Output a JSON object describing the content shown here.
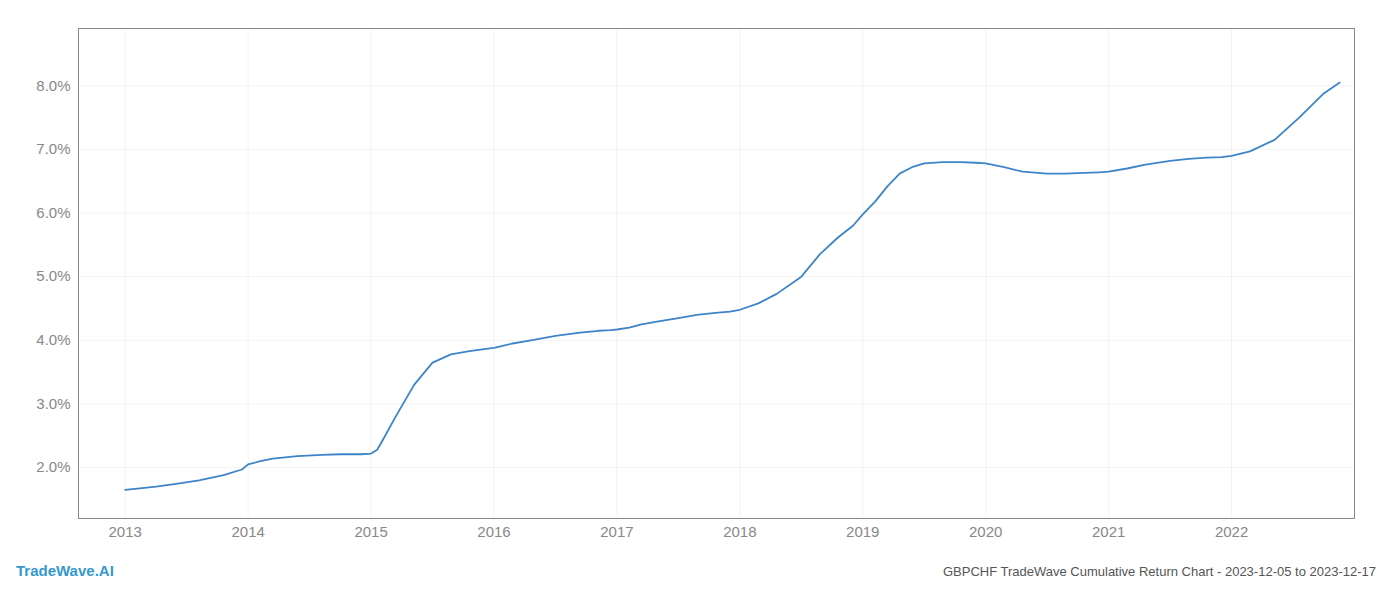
{
  "chart_data": {
    "type": "line",
    "title": "GBPCHF TradeWave Cumulative Return Chart - 2023-12-05 to 2023-12-17",
    "annotations": [
      "TradeWave.AI"
    ],
    "color": "#3d85c8",
    "grid": true,
    "x": [
      2013.0,
      2013.1,
      2013.25,
      2013.4,
      2013.6,
      2013.8,
      2013.95,
      2014.0,
      2014.1,
      2014.2,
      2014.4,
      2014.6,
      2014.75,
      2014.85,
      2014.92,
      2015.0,
      2015.05,
      2015.1,
      2015.2,
      2015.35,
      2015.5,
      2015.65,
      2015.8,
      2015.92,
      2016.0,
      2016.15,
      2016.3,
      2016.5,
      2016.7,
      2016.85,
      2016.95,
      2017.0,
      2017.1,
      2017.2,
      2017.35,
      2017.5,
      2017.65,
      2017.8,
      2017.92,
      2018.0,
      2018.15,
      2018.3,
      2018.5,
      2018.65,
      2018.8,
      2018.92,
      2019.0,
      2019.1,
      2019.2,
      2019.3,
      2019.4,
      2019.5,
      2019.65,
      2019.8,
      2019.92,
      2020.0,
      2020.15,
      2020.3,
      2020.5,
      2020.65,
      2020.8,
      2020.92,
      2021.0,
      2021.15,
      2021.3,
      2021.5,
      2021.65,
      2021.8,
      2021.92,
      2022.0,
      2022.15,
      2022.35,
      2022.55,
      2022.75,
      2022.88
    ],
    "values": [
      1.65,
      1.67,
      1.7,
      1.74,
      1.8,
      1.88,
      1.97,
      2.05,
      2.1,
      2.14,
      2.18,
      2.2,
      2.21,
      2.21,
      2.21,
      2.22,
      2.28,
      2.45,
      2.8,
      3.3,
      3.65,
      3.78,
      3.83,
      3.86,
      3.88,
      3.95,
      4.0,
      4.07,
      4.12,
      4.15,
      4.16,
      4.17,
      4.2,
      4.25,
      4.3,
      4.35,
      4.4,
      4.43,
      4.45,
      4.48,
      4.58,
      4.73,
      5.0,
      5.35,
      5.62,
      5.8,
      5.98,
      6.18,
      6.42,
      6.62,
      6.72,
      6.78,
      6.8,
      6.8,
      6.79,
      6.78,
      6.72,
      6.65,
      6.62,
      6.62,
      6.63,
      6.64,
      6.65,
      6.7,
      6.76,
      6.82,
      6.85,
      6.87,
      6.88,
      6.9,
      6.97,
      7.15,
      7.5,
      7.88,
      8.05
    ],
    "xlim": [
      2012.62,
      2023.0
    ],
    "ylim": [
      1.2,
      8.9
    ],
    "xticks": [
      2013,
      2014,
      2015,
      2016,
      2017,
      2018,
      2019,
      2020,
      2021,
      2022
    ],
    "yticks": [
      {
        "value": 2.0,
        "label": "2.0%"
      },
      {
        "value": 3.0,
        "label": "3.0%"
      },
      {
        "value": 4.0,
        "label": "4.0%"
      },
      {
        "value": 5.0,
        "label": "5.0%"
      },
      {
        "value": 6.0,
        "label": "6.0%"
      },
      {
        "value": 7.0,
        "label": "7.0%"
      },
      {
        "value": 8.0,
        "label": "8.0%"
      }
    ]
  }
}
